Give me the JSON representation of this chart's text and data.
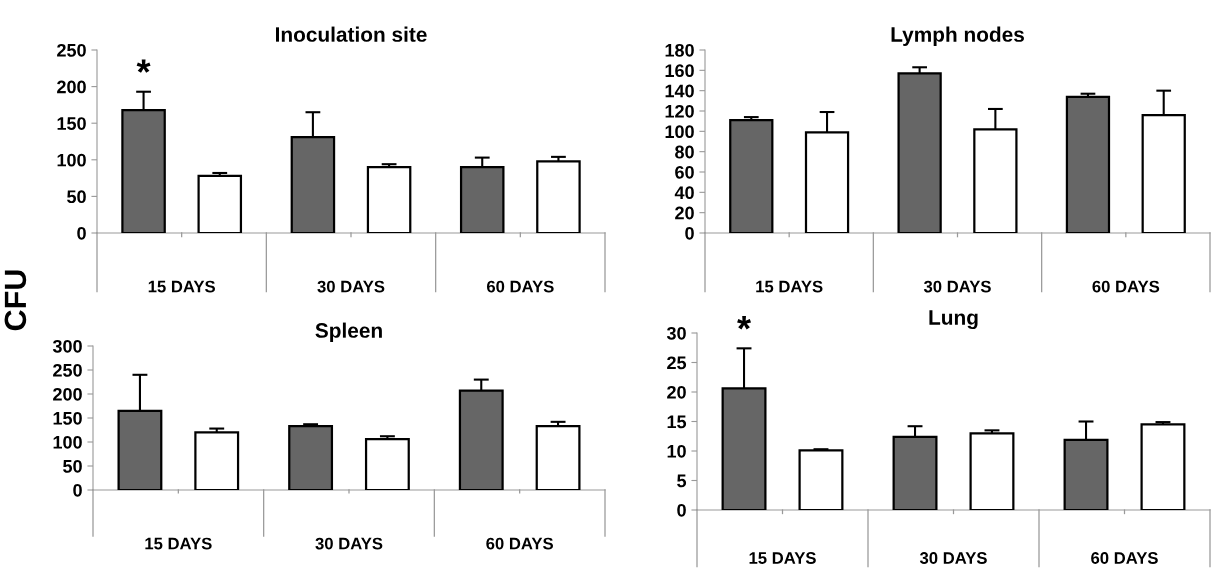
{
  "chart_data": [
    {
      "type": "bar",
      "title": "Inoculation site",
      "ylabel": "CFU",
      "categories": [
        "15 DAYS",
        "30 DAYS",
        "60 DAYS"
      ],
      "ylim": [
        0,
        250
      ],
      "yticks": [
        0,
        50,
        100,
        150,
        200,
        250
      ],
      "grid": false,
      "legend": false,
      "series": [
        {
          "color": "#666666",
          "values": [
            168,
            131,
            90
          ],
          "errors": [
            [
              168,
              193
            ],
            [
              131,
              165
            ],
            [
              90,
              103
            ]
          ]
        },
        {
          "color": "#ffffff",
          "values": [
            78,
            90,
            98
          ],
          "errors": [
            [
              78,
              82
            ],
            [
              90,
              94
            ],
            [
              98,
              104
            ]
          ]
        }
      ],
      "annotations": [
        "*"
      ]
    },
    {
      "type": "bar",
      "title": "Lymph nodes",
      "categories": [
        "15 DAYS",
        "30 DAYS",
        "60 DAYS"
      ],
      "ylim": [
        0,
        180
      ],
      "yticks": [
        0,
        20,
        40,
        60,
        80,
        100,
        120,
        140,
        160,
        180
      ],
      "grid": false,
      "legend": false,
      "series": [
        {
          "color": "#666666",
          "values": [
            111,
            157,
            134
          ],
          "errors": [
            [
              111,
              114
            ],
            [
              157,
              163
            ],
            [
              134,
              137
            ]
          ]
        },
        {
          "color": "#ffffff",
          "values": [
            99,
            102,
            116
          ],
          "errors": [
            [
              99,
              119
            ],
            [
              102,
              122
            ],
            [
              116,
              140
            ]
          ]
        }
      ]
    },
    {
      "type": "bar",
      "title": "Spleen",
      "categories": [
        "15 DAYS",
        "30 DAYS",
        "60 DAYS"
      ],
      "ylim": [
        0,
        300
      ],
      "yticks": [
        0,
        50,
        100,
        150,
        200,
        250,
        300
      ],
      "grid": false,
      "legend": false,
      "series": [
        {
          "color": "#666666",
          "values": [
            165,
            133,
            207
          ],
          "errors": [
            [
              165,
              240
            ],
            [
              133,
              137
            ],
            [
              207,
              230
            ]
          ]
        },
        {
          "color": "#ffffff",
          "values": [
            120,
            106,
            133
          ],
          "errors": [
            [
              120,
              128
            ],
            [
              106,
              112
            ],
            [
              133,
              142
            ]
          ]
        }
      ]
    },
    {
      "type": "bar",
      "title": "Lung",
      "categories": [
        "15 DAYS",
        "30 DAYS",
        "60 DAYS"
      ],
      "ylim": [
        0,
        30
      ],
      "yticks": [
        0,
        5,
        10,
        15,
        20,
        25,
        30
      ],
      "grid": false,
      "legend": false,
      "series": [
        {
          "color": "#666666",
          "values": [
            20.6,
            12.4,
            11.9
          ],
          "errors": [
            [
              20.6,
              27.4
            ],
            [
              12.4,
              14.2
            ],
            [
              11.9,
              15.0
            ]
          ]
        },
        {
          "color": "#ffffff",
          "values": [
            10.1,
            13.0,
            14.5
          ],
          "errors": [
            [
              10.1,
              10.3
            ],
            [
              13.0,
              13.5
            ],
            [
              14.5,
              14.9
            ]
          ]
        }
      ],
      "annotations": [
        "*"
      ]
    }
  ]
}
